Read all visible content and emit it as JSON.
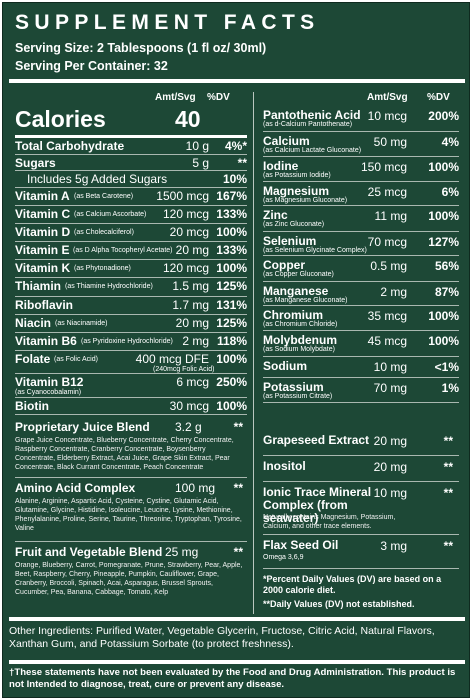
{
  "title": "SUPPLEMENT FACTS",
  "serving_size": "Serving Size: 2 Tablespoons (1 fl oz/ 30ml)",
  "servings_per_container": "Serving Per Container: 32",
  "headers": {
    "amount": "Amt/Svg",
    "dv": "%DV"
  },
  "calories": {
    "label": "Calories",
    "value": "40"
  },
  "left": [
    {
      "name": "Total Carbohydrate",
      "amt": "10 g",
      "dv": "4%*"
    },
    {
      "name": "Sugars",
      "amt": "5 g",
      "dv": "**"
    },
    {
      "name": "Includes 5g Added Sugars",
      "amt": "",
      "dv": "10%"
    },
    {
      "name": "Vitamin A",
      "note": "(as Beta Carotene)",
      "amt": "1500 mcg",
      "dv": "167%"
    },
    {
      "name": "Vitamin C",
      "note": "(as Calcium Ascorbate)",
      "amt": "120 mcg",
      "dv": "133%"
    },
    {
      "name": "Vitamin D",
      "note": "(as Cholecalciferol)",
      "amt": "20 mcg",
      "dv": "100%"
    },
    {
      "name": "Vitamin E",
      "note": "(as D Alpha Tocopheryl Acetate)",
      "amt": "20 mg",
      "dv": "133%"
    },
    {
      "name": "Vitamin K",
      "note": "(as Phytonadione)",
      "amt": "120 mcg",
      "dv": "100%"
    },
    {
      "name": "Thiamin",
      "note": "(as Thiamine Hydrochloride)",
      "amt": "1.5 mg",
      "dv": "125%"
    },
    {
      "name": "Riboflavin",
      "amt": "1.7 mg",
      "dv": "131%"
    },
    {
      "name": "Niacin",
      "note": "(as Niacinamide)",
      "amt": "20 mg",
      "dv": "125%"
    },
    {
      "name": "Vitamin B6",
      "note": "(as Pyridoxine Hydrochloride)",
      "amt": "2 mg",
      "dv": "118%"
    },
    {
      "name": "Folate",
      "note": "(as Folic Acid)",
      "amt": "400 mcg DFE",
      "dv": "100%",
      "sub": "(240mcg Folic Acid)"
    },
    {
      "name": "Vitamin B12",
      "sub": "(as Cyanocobalamin)",
      "amt": "6 mcg",
      "dv": "250%"
    },
    {
      "name": "Biotin",
      "amt": "30 mcg",
      "dv": "100%"
    }
  ],
  "right": [
    {
      "name": "Pantothenic Acid",
      "sub": "(as d-Calcium Pantothenate)",
      "amt": "10 mcg",
      "dv": "200%"
    },
    {
      "name": "Calcium",
      "sub": "(as Calcium Lactate Gluconate)",
      "amt": "50 mg",
      "dv": "4%"
    },
    {
      "name": "Iodine",
      "sub": "(as Potassium Iodide)",
      "amt": "150 mcg",
      "dv": "100%"
    },
    {
      "name": "Magnesium",
      "sub": "(as Magnesium Gluconate)",
      "amt": "25 mcg",
      "dv": "6%"
    },
    {
      "name": "Zinc",
      "sub": "(as Zinc Gluconate)",
      "amt": "11 mg",
      "dv": "100%"
    },
    {
      "name": "Selenium",
      "sub": "(as Selenium Glycinate Complex)",
      "amt": "70 mcg",
      "dv": "127%"
    },
    {
      "name": "Copper",
      "sub": "(as Copper Gluconate)",
      "amt": "0.5 mg",
      "dv": "56%"
    },
    {
      "name": "Manganese",
      "sub": "(as Manganese Gluconate)",
      "amt": "2 mg",
      "dv": "87%"
    },
    {
      "name": "Chromium",
      "sub": "(as Chromium Chloride)",
      "amt": "35 mcg",
      "dv": "100%"
    },
    {
      "name": "Molybdenum",
      "sub": "(as Sodium Molybdate)",
      "amt": "45 mcg",
      "dv": "100%"
    },
    {
      "name": "Sodium",
      "amt": "10 mg",
      "dv": "<1%"
    },
    {
      "name": "Potassium",
      "sub": "(as Potassium Citrate)",
      "amt": "70 mg",
      "dv": "1%"
    }
  ],
  "blends_left": [
    {
      "name": "Proprietary Juice Blend",
      "amt": "3.2 g",
      "dv": "**",
      "desc": "Grape Juice Concentrate, Blueberry Concentrate, Cherry Concentrate, Raspberry Concentrate, Cranberry Concentrate, Boysenberry Concentrate, Elderberry Extract, Acai Juice, Grape Skin Extract, Pear Concentrate, Black Currant Concentrate, Peach Concentrate"
    },
    {
      "name": "Amino Acid Complex",
      "amt": "100 mg",
      "dv": "**",
      "desc": "Alanine, Arginine, Aspartic Acid, Cysteine, Cystine, Glutamic Acid, Glutamine, Glycine, Histidine, Isoleucine, Leucine, Lysine, Methionine, Phenylalanine, Proline, Serine, Taurine, Threonine, Tryptophan, Tyrosine, Valine"
    },
    {
      "name": "Fruit and Vegetable Blend",
      "amt": "25 mg",
      "dv": "**",
      "desc": "Orange, Blueberry, Carrot, Pomegranate, Prune, Strawberry, Pear, Apple, Beet, Raspberry, Cherry, Pineapple, Pumpkin, Cauliflower, Grape, Cranberry, Broccoli, Spinach, Acai, Asparagus, Brussel Sprouts, Cucumber, Pea, Banana, Cabbage, Tomato, Kelp"
    }
  ],
  "blends_right": [
    {
      "name": "Grapeseed Extract",
      "amt": "20 mg",
      "dv": "**"
    },
    {
      "name": "Inositol",
      "amt": "20 mg",
      "dv": "**"
    },
    {
      "name": "Ionic Trace Mineral Complex (from seawater)",
      "amt": "10 mg",
      "dv": "**",
      "desc": "Naturally contains Magnesium, Potassium, Calcium, and other trace elements."
    },
    {
      "name": "Flax Seed Oil",
      "amt": "3 mg",
      "dv": "**",
      "sub": "Omega 3,6,9"
    }
  ],
  "notes": {
    "percent_dv": "*Percent Daily Values (DV) are based on a 2000 calorie diet.",
    "not_established": "**Daily Values (DV) not established."
  },
  "other_ingredients": "Other Ingredients: Purified Water, Vegetable Glycerin, Fructose, Citric Acid, Natural Flavors, Xanthan Gum, and Potassium Sorbate (to protect freshness).",
  "disclaimer": "†These statements have not been evaluated by the Food and Drug Administration. This product is not Intended to diagnose, treat, cure or prevent any disease.",
  "colors": {
    "background": "#1d4836",
    "text": "#ffffff"
  }
}
